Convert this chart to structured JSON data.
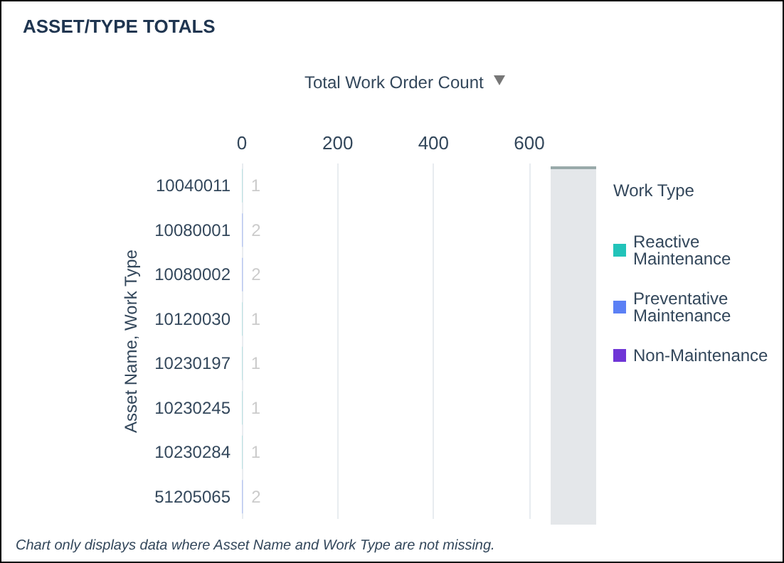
{
  "chart_data": {
    "type": "bar",
    "orientation": "horizontal",
    "stacked": true,
    "title": "ASSET/TYPE TOTALS",
    "xlabel": "Total Work Order Count",
    "ylabel": "Asset Name, Work Type",
    "legend_title": "Work Type",
    "legend": "right",
    "grid": "x",
    "data_labels": true,
    "categories": [
      "10040011",
      "10080001",
      "10080002",
      "10120030",
      "10230197",
      "10230245",
      "10230284",
      "51205065"
    ],
    "xlim": [
      0,
      600
    ],
    "xticks": [
      0,
      200,
      400,
      600
    ],
    "series": [
      {
        "name": "Reactive Maintenance",
        "color": "#22c3b9",
        "values": [
          1,
          null,
          null,
          1,
          1,
          1,
          1,
          null
        ]
      },
      {
        "name": "Preventative Maintenance",
        "color": "#5b80f5",
        "values": [
          null,
          2,
          2,
          null,
          null,
          null,
          null,
          2
        ]
      },
      {
        "name": "Non-Maintenance",
        "color": "#6f35d6",
        "values": [
          null,
          null,
          null,
          null,
          null,
          null,
          null,
          null
        ]
      }
    ],
    "annotations": [
      "Chart only displays data where Asset Name and Work Type are not missing."
    ]
  }
}
